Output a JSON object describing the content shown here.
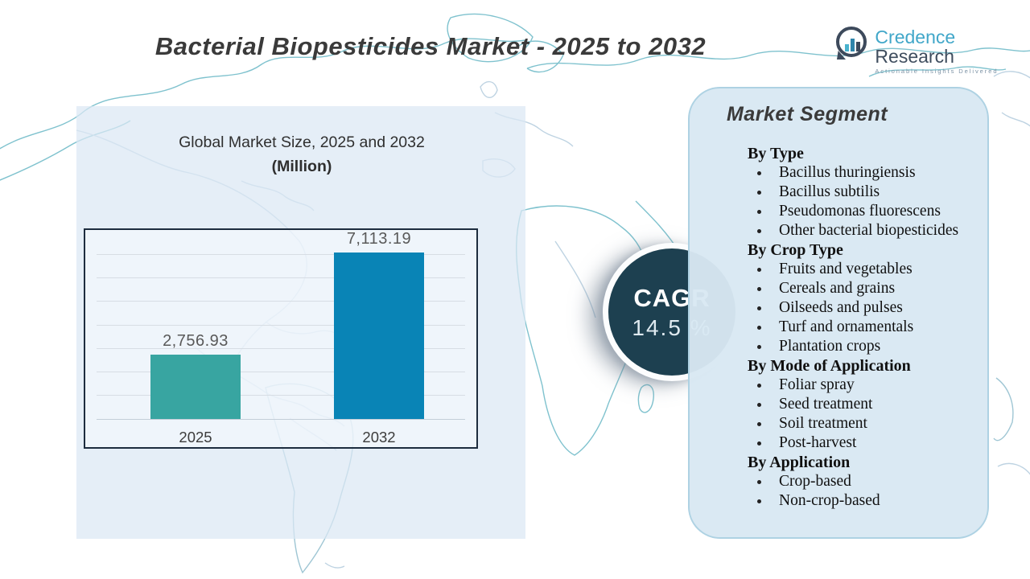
{
  "page": {
    "title": "Bacterial Biopesticides Market - 2025 to 2032"
  },
  "logo": {
    "brand_primary": "Credence",
    "brand_secondary": "Research",
    "tagline": "Actionable Insights Delivered",
    "icon": "bar-chart-speech-bubble-icon",
    "colors": {
      "primary": "#41a7c9",
      "secondary": "#3f4d5e"
    }
  },
  "chart_panel": {
    "subtitle": "Global Market Size, 2025 and 2032",
    "unit_label": "(Million)"
  },
  "chart_data": {
    "type": "bar",
    "title": "Global Market Size, 2025 and 2032 (Million)",
    "categories": [
      "2025",
      "2032"
    ],
    "values": [
      2756.93,
      7113.19
    ],
    "value_labels": [
      "2,756.93",
      "7,113.19"
    ],
    "bar_colors": [
      "#38a5a1",
      "#0984b6"
    ],
    "ylim": [
      0,
      8000
    ],
    "gridline_step": 1000,
    "grid": "horizontal",
    "legend": "none"
  },
  "cagr": {
    "label": "CAGR",
    "value": "14.5 %",
    "circle_color": "#1d4050"
  },
  "segments": {
    "title": "Market Segment",
    "sections": [
      {
        "header": "By Type",
        "items": [
          "Bacillus thuringiensis",
          "Bacillus subtilis",
          "Pseudomonas fluorescens",
          "Other bacterial biopesticides"
        ]
      },
      {
        "header": "By Crop Type",
        "items": [
          "Fruits and vegetables",
          "Cereals and grains",
          "Oilseeds and pulses",
          "Turf and ornamentals",
          "Plantation crops"
        ]
      },
      {
        "header": "By Mode of Application",
        "items": [
          "Foliar spray",
          "Seed treatment",
          "Soil treatment",
          "Post-harvest"
        ]
      },
      {
        "header": "By Application",
        "items": [
          "Crop-based",
          "Non-crop-based"
        ]
      }
    ]
  }
}
